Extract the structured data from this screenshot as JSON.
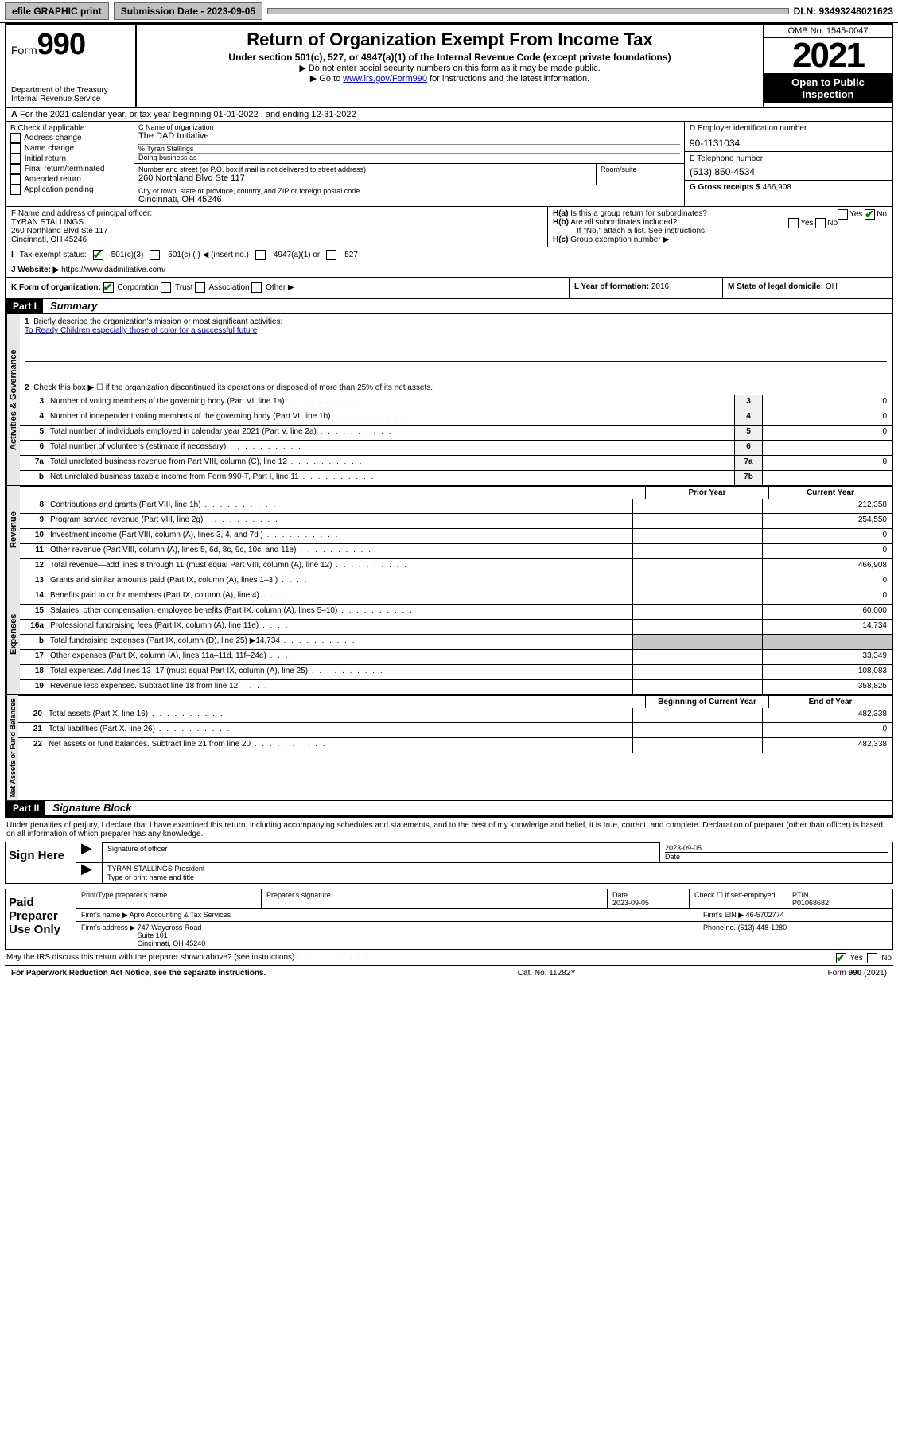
{
  "topbar": {
    "efile": "efile GRAPHIC print",
    "sub_label": "Submission Date - 2023-09-05",
    "dln": "DLN: 93493248021623"
  },
  "header": {
    "form_label": "Form",
    "form_no": "990",
    "dept": "Department of the Treasury\nInternal Revenue Service",
    "title": "Return of Organization Exempt From Income Tax",
    "subtitle": "Under section 501(c), 527, or 4947(a)(1) of the Internal Revenue Code (except private foundations)",
    "note1": "▶ Do not enter social security numbers on this form as it may be made public.",
    "note2_a": "▶ Go to ",
    "note2_link": "www.irs.gov/Form990",
    "note2_b": " for instructions and the latest information.",
    "omb": "OMB No. 1545-0047",
    "year": "2021",
    "opi": "Open to Public Inspection"
  },
  "rowA": "For the 2021 calendar year, or tax year beginning 01-01-2022   , and ending 12-31-2022",
  "boxB": {
    "title": "B Check if applicable:",
    "items": [
      "Address change",
      "Name change",
      "Initial return",
      "Final return/terminated",
      "Amended return",
      "Application pending"
    ]
  },
  "boxC": {
    "name_lbl": "C Name of organization",
    "name": "The DAD Initiative",
    "care_lbl": "% Tyran Stallings",
    "dba_lbl": "Doing business as",
    "street_lbl": "Number and street (or P.O. box if mail is not delivered to street address)",
    "room_lbl": "Room/suite",
    "street": "260 Northland Blvd Ste 117",
    "city_lbl": "City or town, state or province, country, and ZIP or foreign postal code",
    "city": "Cincinnati, OH  45246"
  },
  "boxD": {
    "lbl": "D Employer identification number",
    "val": "90-1131034"
  },
  "boxE": {
    "lbl": "E Telephone number",
    "val": "(513) 850-4534"
  },
  "boxG": {
    "lbl": "G Gross receipts $",
    "val": "466,908"
  },
  "boxF": {
    "lbl": "F Name and address of principal officer:",
    "name": "TYRAN STALLINGS",
    "addr1": "260 Northland Blvd Ste 117",
    "addr2": "Cincinnati, OH  45246"
  },
  "boxH": {
    "ha": "Is this a group return for subordinates?",
    "hb": "Are all subordinates included?",
    "hb_note": "If \"No,\" attach a list. See instructions.",
    "hc": "Group exemption number ▶",
    "yes": "Yes",
    "no": "No"
  },
  "boxI": {
    "lbl": "Tax-exempt status:",
    "o1": "501(c)(3)",
    "o2": "501(c) (  ) ◀ (insert no.)",
    "o3": "4947(a)(1) or",
    "o4": "527"
  },
  "boxJ": {
    "lbl": "Website: ▶",
    "val": "https://www.dadinitiative.com/"
  },
  "boxK": {
    "lbl": "K Form of organization:",
    "o1": "Corporation",
    "o2": "Trust",
    "o3": "Association",
    "o4": "Other ▶"
  },
  "boxL": {
    "lbl": "L Year of formation:",
    "val": "2016"
  },
  "boxM": {
    "lbl": "M State of legal domicile:",
    "val": "OH"
  },
  "part1": {
    "hdr": "Part I",
    "title": "Summary",
    "l1_lbl": "Briefly describe the organization's mission or most significant activities:",
    "l1_txt": "To Ready Children especially those of color for a successful future",
    "l2": "Check this box ▶ ☐  if the organization discontinued its operations or disposed of more than 25% of its net assets.",
    "vlab1": "Activities & Governance",
    "vlab2": "Revenue",
    "vlab3": "Expenses",
    "vlab4": "Net Assets or Fund Balances",
    "prior": "Prior Year",
    "current": "Current Year",
    "boc": "Beginning of Current Year",
    "eoy": "End of Year",
    "lines_gov": [
      {
        "n": "3",
        "t": "Number of voting members of the governing body (Part VI, line 1a)",
        "b": "3",
        "v": "0"
      },
      {
        "n": "4",
        "t": "Number of independent voting members of the governing body (Part VI, line 1b)",
        "b": "4",
        "v": "0"
      },
      {
        "n": "5",
        "t": "Total number of individuals employed in calendar year 2021 (Part V, line 2a)",
        "b": "5",
        "v": "0"
      },
      {
        "n": "6",
        "t": "Total number of volunteers (estimate if necessary)",
        "b": "6",
        "v": ""
      },
      {
        "n": "7a",
        "t": "Total unrelated business revenue from Part VIII, column (C), line 12",
        "b": "7a",
        "v": "0"
      },
      {
        "n": "b",
        "t": "Net unrelated business taxable income from Form 990-T, Part I, line 11",
        "b": "7b",
        "v": ""
      }
    ],
    "lines_rev": [
      {
        "n": "8",
        "t": "Contributions and grants (Part VIII, line 1h)",
        "p": "",
        "c": "212,358"
      },
      {
        "n": "9",
        "t": "Program service revenue (Part VIII, line 2g)",
        "p": "",
        "c": "254,550"
      },
      {
        "n": "10",
        "t": "Investment income (Part VIII, column (A), lines 3, 4, and 7d )",
        "p": "",
        "c": "0"
      },
      {
        "n": "11",
        "t": "Other revenue (Part VIII, column (A), lines 5, 6d, 8c, 9c, 10c, and 11e)",
        "p": "",
        "c": "0"
      },
      {
        "n": "12",
        "t": "Total revenue—add lines 8 through 11 (must equal Part VIII, column (A), line 12)",
        "p": "",
        "c": "466,908"
      }
    ],
    "lines_exp": [
      {
        "n": "13",
        "t": "Grants and similar amounts paid (Part IX, column (A), lines 1–3 )",
        "p": "",
        "c": "0",
        "d": 1
      },
      {
        "n": "14",
        "t": "Benefits paid to or for members (Part IX, column (A), line 4)",
        "p": "",
        "c": "0",
        "d": 1
      },
      {
        "n": "15",
        "t": "Salaries, other compensation, employee benefits (Part IX, column (A), lines 5–10)",
        "p": "",
        "c": "60,000"
      },
      {
        "n": "16a",
        "t": "Professional fundraising fees (Part IX, column (A), line 11e)",
        "p": "",
        "c": "14,734",
        "d": 1
      },
      {
        "n": "b",
        "t": "Total fundraising expenses (Part IX, column (D), line 25) ▶14,734",
        "p": "shade",
        "c": "shade"
      },
      {
        "n": "17",
        "t": "Other expenses (Part IX, column (A), lines 11a–11d, 11f–24e)",
        "p": "",
        "c": "33,349",
        "d": 1
      },
      {
        "n": "18",
        "t": "Total expenses. Add lines 13–17 (must equal Part IX, column (A), line 25)",
        "p": "",
        "c": "108,083"
      },
      {
        "n": "19",
        "t": "Revenue less expenses. Subtract line 18 from line 12",
        "p": "",
        "c": "358,825",
        "d": 1
      }
    ],
    "lines_net": [
      {
        "n": "20",
        "t": "Total assets (Part X, line 16)",
        "p": "",
        "c": "482,338"
      },
      {
        "n": "21",
        "t": "Total liabilities (Part X, line 26)",
        "p": "",
        "c": "0"
      },
      {
        "n": "22",
        "t": "Net assets or fund balances. Subtract line 21 from line 20",
        "p": "",
        "c": "482,338"
      }
    ]
  },
  "part2": {
    "hdr": "Part II",
    "title": "Signature Block",
    "decl": "Under penalties of perjury, I declare that I have examined this return, including accompanying schedules and statements, and to the best of my knowledge and belief, it is true, correct, and complete. Declaration of preparer (other than officer) is based on all information of which preparer has any knowledge.",
    "sign_here": "Sign Here",
    "sig_officer": "Signature of officer",
    "date": "Date",
    "date_val": "2023-09-05",
    "officer_name": "TYRAN STALLINGS  President",
    "type_name": "Type or print name and title",
    "paid": "Paid Preparer Use Only",
    "prep_name_lbl": "Print/Type preparer's name",
    "prep_sig_lbl": "Preparer's signature",
    "prep_date_lbl": "Date",
    "prep_date": "2023-09-05",
    "self_emp": "Check ☐ if self-employed",
    "ptin_lbl": "PTIN",
    "ptin": "P01068682",
    "firm_name_lbl": "Firm's name   ▶",
    "firm_name": "Apro Accounting & Tax Services",
    "firm_ein_lbl": "Firm's EIN ▶",
    "firm_ein": "46-5702774",
    "firm_addr_lbl": "Firm's address ▶",
    "firm_addr": "747 Waycross Road\nSuite 101\nCincinnati, OH  45240",
    "firm_phone_lbl": "Phone no.",
    "firm_phone": "(513) 448-1280",
    "discuss": "May the IRS discuss this return with the preparer shown above? (see instructions)",
    "yes": "Yes",
    "no": "No"
  },
  "footer": {
    "left": "For Paperwork Reduction Act Notice, see the separate instructions.",
    "mid": "Cat. No. 11282Y",
    "right": "Form 990 (2021)"
  }
}
